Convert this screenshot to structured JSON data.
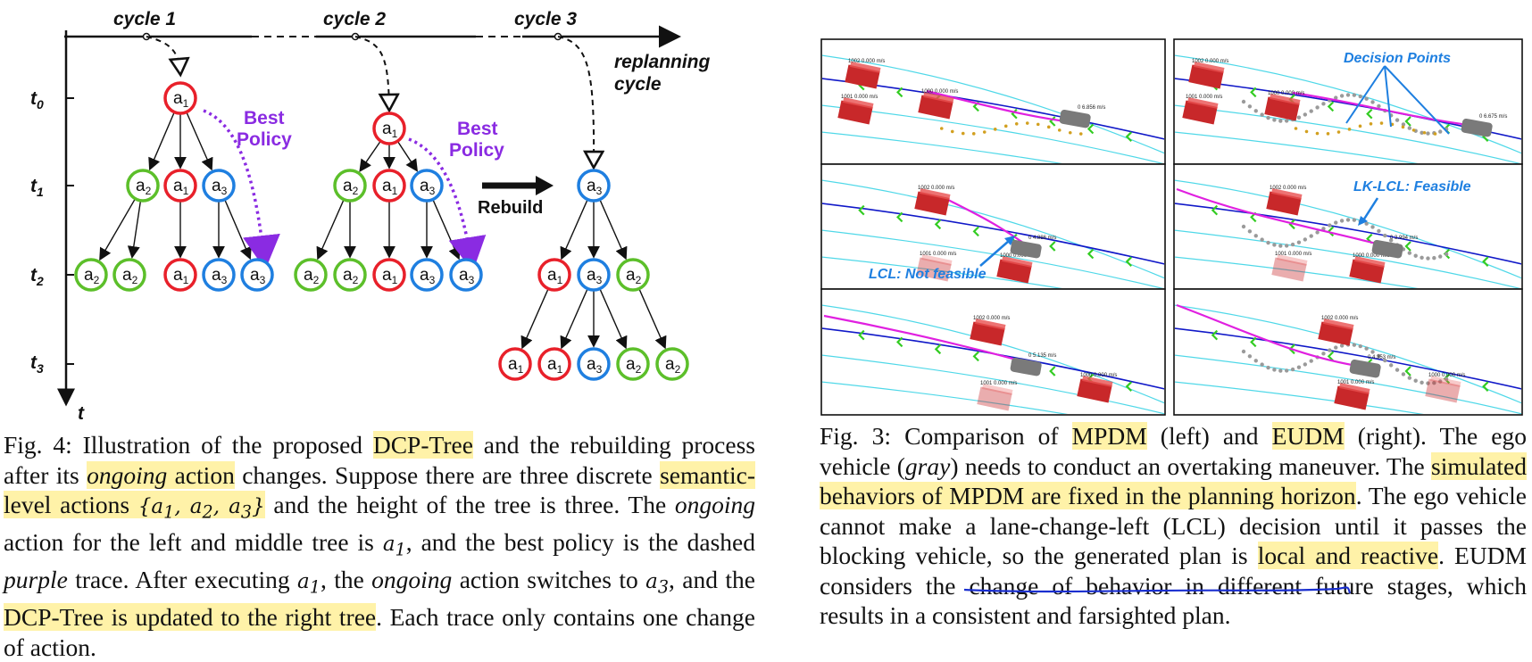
{
  "fig4": {
    "cycles": [
      "cycle 1",
      "cycle 2",
      "cycle 3"
    ],
    "replanning": [
      "replanning",
      "cycle"
    ],
    "time_labels": [
      "t0",
      "t1",
      "t2",
      "t3"
    ],
    "axis_t": "t",
    "best_policy": [
      "Best",
      "Policy"
    ],
    "rebuild": "Rebuild",
    "node_letter": "a",
    "colors": {
      "a1": "#e8202a",
      "a2": "#5cbf2a",
      "a3": "#1f7fe0",
      "policy": "#8a2be2"
    },
    "tree_left": {
      "root": "1",
      "level1": [
        "2",
        "1",
        "3"
      ],
      "level2": [
        "2",
        "2",
        "1",
        "3",
        "3"
      ]
    },
    "tree_mid": {
      "root": "1",
      "level1": [
        "2",
        "1",
        "3"
      ],
      "level2": [
        "2",
        "2",
        "1",
        "3",
        "3"
      ]
    },
    "tree_right": {
      "root": "3",
      "level1": [
        "1",
        "3",
        "2"
      ],
      "level2": [
        "1",
        "1",
        "3",
        "2",
        "2"
      ]
    }
  },
  "fig3": {
    "annotations": {
      "decision_points": "Decision Points",
      "lk_lcl": "LK-LCL: Feasible",
      "lcl_not": "LCL: Not feasible"
    },
    "vehicle_labels": {
      "v1": "1002  0.000  m/s",
      "v2": "1001  0.000  m/s",
      "v3": "1000  0.000  m/s",
      "ego1": "0  6.856  m/s",
      "ego2": "0  6.675  m/s",
      "ego3": "0  4.886  m/s",
      "ego4": "0  3.994  m/s",
      "ego5": "0  5.135  m/s",
      "ego6": "0  4.353  m/s"
    },
    "colors": {
      "lane_main": "#1018c8",
      "lane_side": "#4fd8e8",
      "plan": "#e020e0",
      "car": "#c8282a",
      "ego": "#7a7a7a"
    }
  },
  "caption4": {
    "prefix": "Fig. 4: Illustration of the proposed ",
    "hl1": "DCP-Tree",
    "s2": " and the rebuilding process after its ",
    "hl2_it": "ongoing",
    "hl2_rest": " action",
    "s3": " changes. Suppose there are three discrete ",
    "hl3": "semantic-level actions",
    "set": "{a1, a2, a3}",
    "s4": " and the height of the tree is three. The ",
    "it1": "ongoing",
    "s5": " action for the left and middle tree is ",
    "m1": "a1",
    "s6": ", and the best policy is the dashed ",
    "it2": "purple",
    "s7": " trace. After executing ",
    "m2": "a1",
    "s8": ", the ",
    "it3": "ongoing",
    "s9": " action switches to ",
    "m3": "a3",
    "s10": ", and the ",
    "hl4": "DCP-Tree is updated to the right tree",
    "s11": ". Each trace only contains one change of action."
  },
  "caption3": {
    "prefix": "Fig. 3: Comparison of ",
    "hl1": "MPDM",
    "s2": " (left) and ",
    "hl2": "EUDM",
    "s3": " (right). The ego vehicle (",
    "it1": "gray",
    "s4": ") needs to conduct an overtaking maneuver. The ",
    "hl3": "simulated behaviors of MPDM are fixed in the planning horizon",
    "s5": ". The ego vehicle cannot make a lane-change-left (LCL) decision until it passes the blocking vehicle, so the generated plan is ",
    "hl4": "local and reactive",
    "s6": ". EUDM considers the change of behavior in different future stages, which results in a consistent and farsighted plan."
  }
}
